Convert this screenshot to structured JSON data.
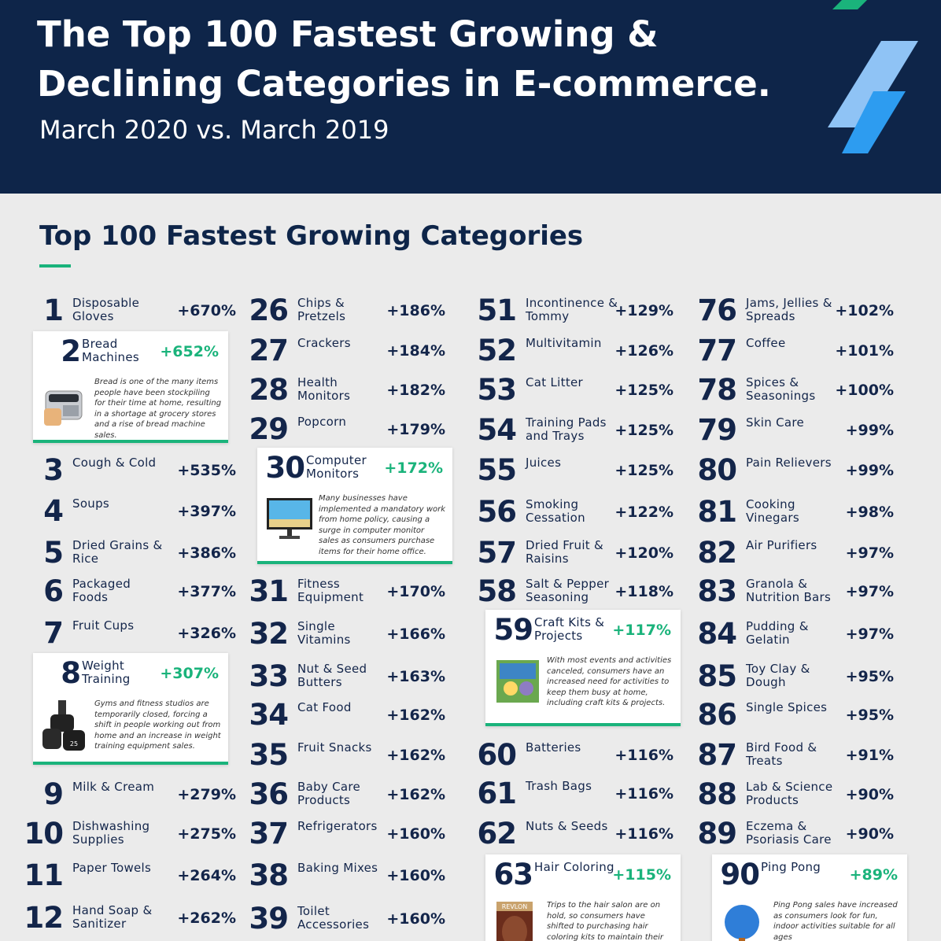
{
  "header": {
    "title": "The Top 100 Fastest Growing & Declining Categories in E-commerce.",
    "subtitle": "March 2020 vs. March 2019"
  },
  "section": {
    "title": "Top 100 Fastest Growing Categories"
  },
  "colors": {
    "navy": "#0e2549",
    "accent_green": "#1ab37b",
    "accent_blue": "#2d9cf0"
  },
  "col1": [
    {
      "num": "1",
      "label": "Disposable Gloves",
      "pct": "+670%"
    },
    {
      "num": "3",
      "label": "Cough & Cold",
      "pct": "+535%"
    },
    {
      "num": "4",
      "label": "Soups",
      "pct": "+397%"
    },
    {
      "num": "5",
      "label": "Dried Grains & Rice",
      "pct": "+386%"
    },
    {
      "num": "6",
      "label": "Packaged Foods",
      "pct": "+377%"
    },
    {
      "num": "7",
      "label": "Fruit Cups",
      "pct": "+326%"
    },
    {
      "num": "9",
      "label": "Milk & Cream",
      "pct": "+279%"
    },
    {
      "num": "10",
      "label": "Dishwashing Supplies",
      "pct": "+275%"
    },
    {
      "num": "11",
      "label": "Paper Towels",
      "pct": "+264%"
    },
    {
      "num": "12",
      "label": "Hand Soap & Sanitizer",
      "pct": "+262%"
    }
  ],
  "col2": [
    {
      "num": "26",
      "label": "Chips & Pretzels",
      "pct": "+186%"
    },
    {
      "num": "27",
      "label": "Crackers",
      "pct": "+184%"
    },
    {
      "num": "28",
      "label": "Health Monitors",
      "pct": "+182%"
    },
    {
      "num": "29",
      "label": "Popcorn",
      "pct": "+179%"
    },
    {
      "num": "31",
      "label": "Fitness Equipment",
      "pct": "+170%"
    },
    {
      "num": "32",
      "label": "Single Vitamins",
      "pct": "+166%"
    },
    {
      "num": "33",
      "label": "Nut & Seed Butters",
      "pct": "+163%"
    },
    {
      "num": "34",
      "label": "Cat Food",
      "pct": "+162%"
    },
    {
      "num": "35",
      "label": "Fruit Snacks",
      "pct": "+162%"
    },
    {
      "num": "36",
      "label": "Baby Care Products",
      "pct": "+162%"
    },
    {
      "num": "37",
      "label": "Refrigerators",
      "pct": "+160%"
    },
    {
      "num": "38",
      "label": "Baking Mixes",
      "pct": "+160%"
    },
    {
      "num": "39",
      "label": "Toilet Accessories",
      "pct": "+160%"
    }
  ],
  "col3": [
    {
      "num": "51",
      "label": "Incontinence & Tommy",
      "pct": "+129%"
    },
    {
      "num": "52",
      "label": "Multivitamin",
      "pct": "+126%"
    },
    {
      "num": "53",
      "label": "Cat Litter",
      "pct": "+125%"
    },
    {
      "num": "54",
      "label": "Training Pads and Trays",
      "pct": "+125%"
    },
    {
      "num": "55",
      "label": "Juices",
      "pct": "+125%"
    },
    {
      "num": "56",
      "label": "Smoking Cessation",
      "pct": "+122%"
    },
    {
      "num": "57",
      "label": "Dried Fruit & Raisins",
      "pct": "+120%"
    },
    {
      "num": "58",
      "label": "Salt & Pepper Seasoning",
      "pct": "+118%"
    },
    {
      "num": "60",
      "label": "Batteries",
      "pct": "+116%"
    },
    {
      "num": "61",
      "label": "Trash Bags",
      "pct": "+116%"
    },
    {
      "num": "62",
      "label": "Nuts & Seeds",
      "pct": "+116%"
    }
  ],
  "col4": [
    {
      "num": "76",
      "label": "Jams, Jellies & Spreads",
      "pct": "+102%"
    },
    {
      "num": "77",
      "label": "Coffee",
      "pct": "+101%"
    },
    {
      "num": "78",
      "label": "Spices & Seasonings",
      "pct": "+100%"
    },
    {
      "num": "79",
      "label": "Skin Care",
      "pct": "+99%"
    },
    {
      "num": "80",
      "label": "Pain Relievers",
      "pct": "+99%"
    },
    {
      "num": "81",
      "label": "Cooking Vinegars",
      "pct": "+98%"
    },
    {
      "num": "82",
      "label": "Air Purifiers",
      "pct": "+97%"
    },
    {
      "num": "83",
      "label": "Granola & Nutrition Bars",
      "pct": "+97%"
    },
    {
      "num": "84",
      "label": "Pudding & Gelatin",
      "pct": "+97%"
    },
    {
      "num": "85",
      "label": "Toy Clay & Dough",
      "pct": "+95%"
    },
    {
      "num": "86",
      "label": "Single Spices",
      "pct": "+95%"
    },
    {
      "num": "87",
      "label": "Bird Food & Treats",
      "pct": "+91%"
    },
    {
      "num": "88",
      "label": "Lab & Science Products",
      "pct": "+90%"
    },
    {
      "num": "89",
      "label": "Eczema & Psoriasis Care",
      "pct": "+90%"
    }
  ],
  "cards": [
    {
      "num": "2",
      "label": "Bread Machines",
      "pct": "+652%",
      "desc": "Bread is one of the many items people have been stockpiling for their time at home, resulting in a shortage at grocery stores and a rise of bread machine sales.",
      "icon": "bread-machine-icon"
    },
    {
      "num": "8",
      "label": "Weight Training",
      "pct": "+307%",
      "desc": "Gyms and fitness studios are temporarily closed, forcing a shift in people working out from home and an increase in weight training equipment sales.",
      "icon": "dumbbell-icon",
      "weight_label": "25"
    },
    {
      "num": "30",
      "label": "Computer Monitors",
      "pct": "+172%",
      "desc": "Many businesses have implemented a mandatory work from home policy, causing a surge in computer monitor sales as consumers purchase items for their home office.",
      "icon": "monitor-icon"
    },
    {
      "num": "59",
      "label": "Craft Kits & Projects",
      "pct": "+117%",
      "desc": "With most events and activities canceled, consumers have an increased need for activities to keep them busy at home, including craft kits & projects.",
      "icon": "craft-kit-icon"
    },
    {
      "num": "63",
      "label": "Hair Coloring",
      "pct": "+115%",
      "desc": "Trips to the hair salon are on hold, so consumers have shifted to purchasing hair coloring kits to maintain their",
      "icon": "hair-dye-icon",
      "brand_label": "REVLON"
    },
    {
      "num": "90",
      "label": "Ping Pong",
      "pct": "+89%",
      "desc": "Ping Pong sales have increased as consumers look for fun, indoor activities suitable for all ages",
      "icon": "ping-pong-icon"
    }
  ]
}
